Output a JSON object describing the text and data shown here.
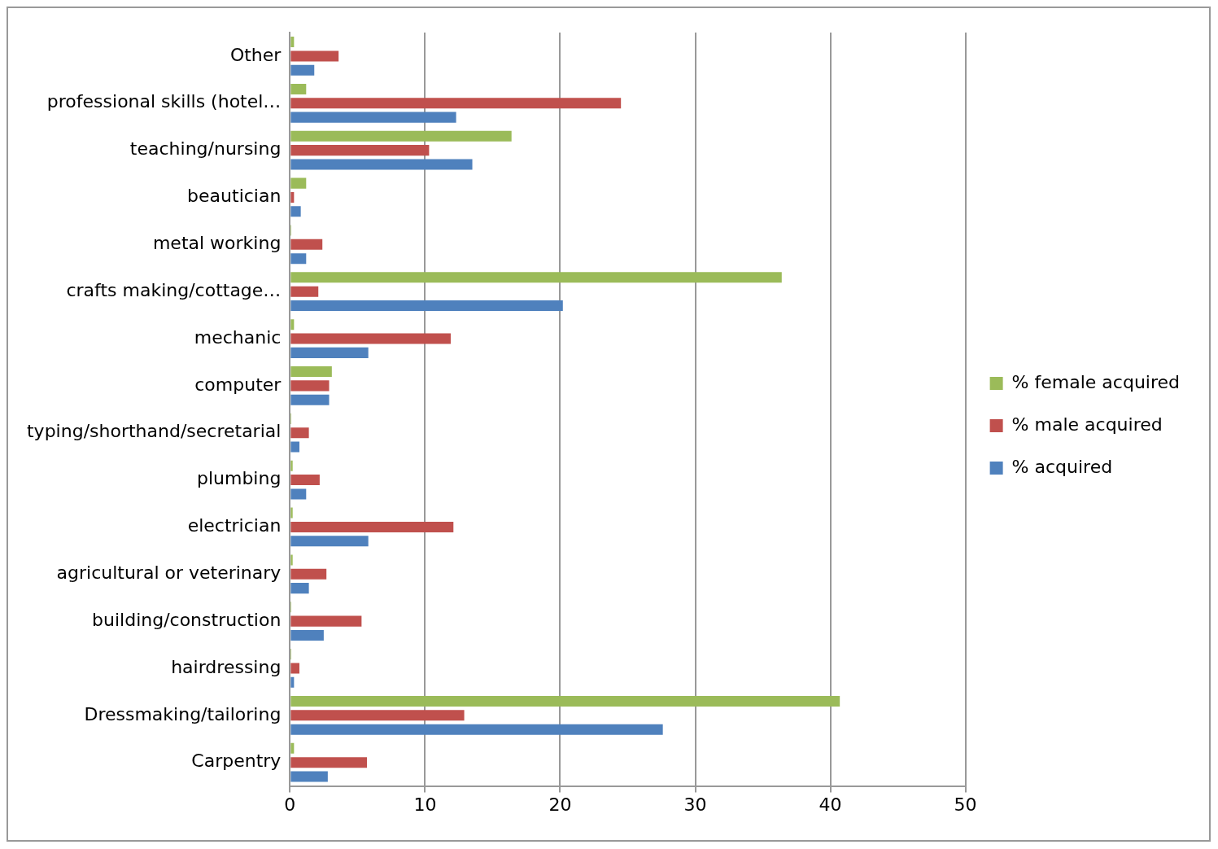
{
  "chart_data": {
    "type": "bar",
    "orientation": "horizontal",
    "categories": [
      "Other",
      "professional skills (hotel…",
      "teaching/nursing",
      "beautician",
      "metal working",
      "crafts making/cottage…",
      "mechanic",
      "computer",
      "typing/shorthand/secretarial",
      "plumbing",
      "electrician",
      "agricultural or veterinary",
      "building/construction",
      "hairdressing",
      "Dressmaking/tailoring",
      "Carpentry"
    ],
    "series": [
      {
        "name": "% female acquired",
        "color": "#9bbb59",
        "values": [
          0.3,
          1.2,
          16.4,
          1.2,
          0.1,
          36.4,
          0.3,
          3.1,
          0.1,
          0.2,
          0.2,
          0.2,
          0.1,
          0.1,
          40.7,
          0.3
        ]
      },
      {
        "name": "% male acquired",
        "color": "#c0504d",
        "values": [
          3.6,
          24.5,
          10.3,
          0.3,
          2.4,
          2.1,
          11.9,
          2.9,
          1.4,
          2.2,
          12.1,
          2.7,
          5.3,
          0.7,
          12.9,
          5.7
        ]
      },
      {
        "name": "% acquired",
        "color": "#4f81bd",
        "values": [
          1.8,
          12.3,
          13.5,
          0.8,
          1.2,
          20.2,
          5.8,
          2.9,
          0.7,
          1.2,
          5.8,
          1.4,
          2.5,
          0.3,
          27.6,
          2.8
        ]
      }
    ],
    "xlim": [
      0,
      50
    ],
    "xticks": [
      0,
      10,
      20,
      30,
      40,
      50
    ],
    "grid": "x",
    "legend": "right"
  }
}
